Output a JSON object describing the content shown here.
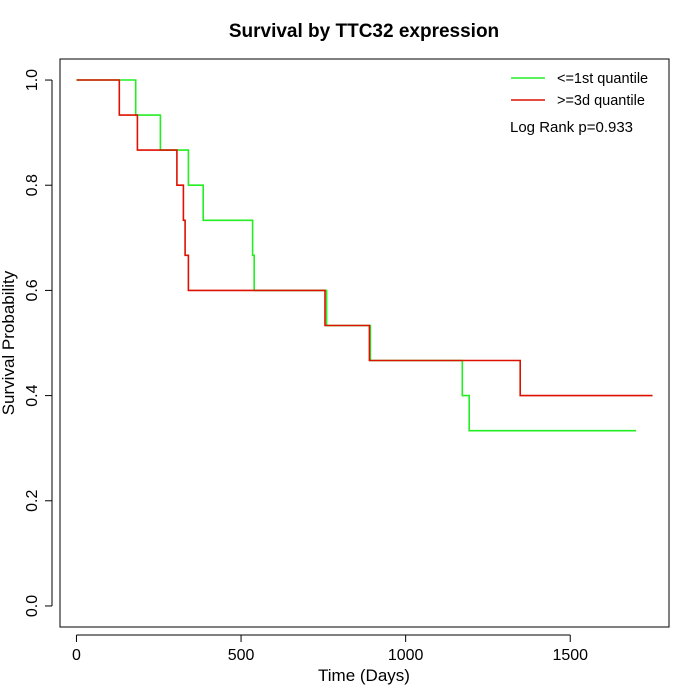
{
  "chart_data": {
    "type": "line",
    "title": "Survival by TTC32 expression",
    "xlabel": "Time (Days)",
    "ylabel": "Survival Probability",
    "xlim": [
      -50,
      1800
    ],
    "ylim": [
      -0.04,
      1.04
    ],
    "x_ticks": [
      0,
      500,
      1000,
      1500
    ],
    "y_ticks": [
      0.0,
      0.2,
      0.4,
      0.6,
      0.8,
      1.0
    ],
    "x_tick_labels": [
      "0",
      "500",
      "1000",
      "1500"
    ],
    "y_tick_labels": [
      "0.0",
      "0.2",
      "0.4",
      "0.6",
      "0.8",
      "1.0"
    ],
    "grid": false,
    "legend_position": "top-right",
    "annotation": "Log Rank p=0.933",
    "series": [
      {
        "name": "<=1st quantile",
        "color": "#22ee22",
        "x": [
          0,
          180,
          180,
          255,
          255,
          340,
          340,
          385,
          385,
          535,
          535,
          540,
          540,
          760,
          760,
          893,
          893,
          1172,
          1172,
          1193,
          1193,
          1700
        ],
        "y": [
          1.0,
          1.0,
          0.9333,
          0.9333,
          0.8667,
          0.8667,
          0.8,
          0.8,
          0.7333,
          0.7333,
          0.6667,
          0.6667,
          0.6,
          0.6,
          0.5333,
          0.5333,
          0.4667,
          0.4667,
          0.4,
          0.4,
          0.3333,
          0.3333
        ]
      },
      {
        "name": ">=3d quantile",
        "color": "#dd1100",
        "x": [
          0,
          130,
          130,
          185,
          185,
          305,
          305,
          325,
          325,
          330,
          330,
          340,
          340,
          755,
          755,
          890,
          890,
          1348,
          1348,
          1750
        ],
        "y": [
          1.0,
          1.0,
          0.9333,
          0.9333,
          0.8667,
          0.8667,
          0.8,
          0.8,
          0.7333,
          0.7333,
          0.6667,
          0.6667,
          0.6,
          0.6,
          0.5333,
          0.5333,
          0.4667,
          0.4667,
          0.4,
          0.4
        ]
      }
    ]
  }
}
